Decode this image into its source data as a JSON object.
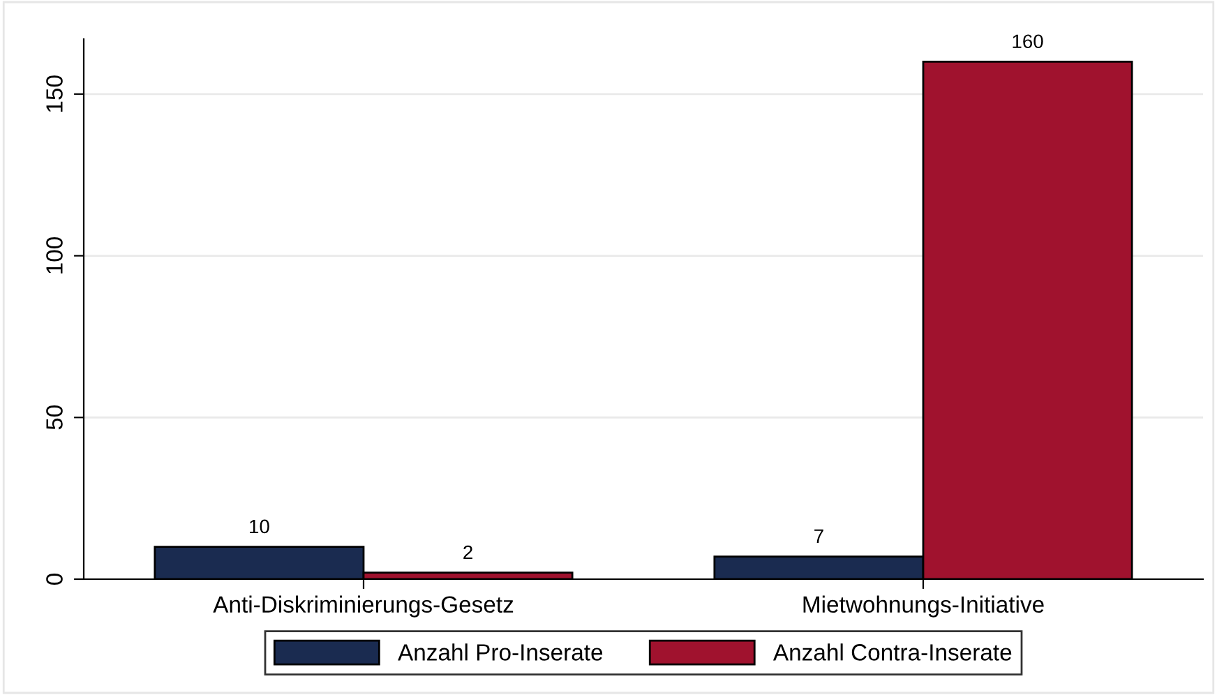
{
  "chart_data": {
    "type": "bar",
    "categories": [
      "Anti-Diskriminierungs-Gesetz",
      "Mietwohnungs-Initiative"
    ],
    "series": [
      {
        "name": "Anzahl Pro-Inserate",
        "color": "#1a2b50",
        "values": [
          10,
          7
        ]
      },
      {
        "name": "Anzahl Contra-Inserate",
        "color": "#a0122e",
        "values": [
          2,
          160
        ]
      }
    ],
    "ylim": [
      0,
      167
    ],
    "yticks": [
      0,
      50,
      100,
      150
    ],
    "grid": "y",
    "legend": "bottom",
    "data_labels": true
  }
}
